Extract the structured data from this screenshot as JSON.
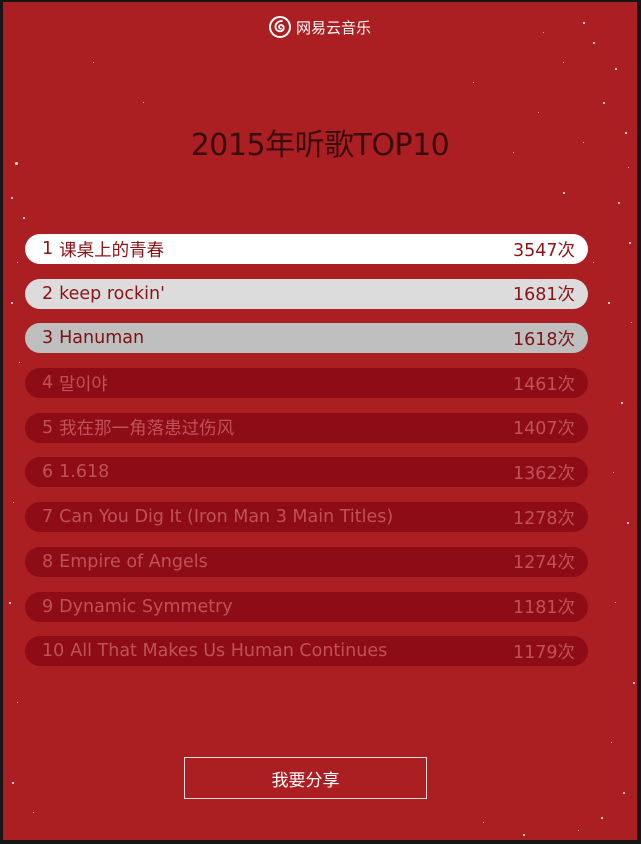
{
  "brand": {
    "name": "网易云音乐",
    "icon": "netease-music-logo-icon"
  },
  "title": "2015年听歌TOP10",
  "colors": {
    "background": "#ab1f23",
    "title": "#3a0b0d",
    "row_dark": "#8d0c16",
    "row_dark_text": "#c0515a"
  },
  "top_songs": [
    {
      "rank": "1",
      "name": "课桌上的青春",
      "count": "3547次"
    },
    {
      "rank": "2",
      "name": "keep rockin'",
      "count": "1681次"
    },
    {
      "rank": "3",
      "name": "Hanuman",
      "count": "1618次"
    },
    {
      "rank": "4",
      "name": "말이야",
      "count": "1461次"
    },
    {
      "rank": "5",
      "name": "我在那一角落患过伤风",
      "count": "1407次"
    },
    {
      "rank": "6",
      "name": "1.618",
      "count": "1362次"
    },
    {
      "rank": "7",
      "name": "Can You Dig It (Iron Man 3 Main Titles)",
      "count": "1278次"
    },
    {
      "rank": "8",
      "name": "Empire of Angels",
      "count": "1274次"
    },
    {
      "rank": "9",
      "name": "Dynamic Symmetry",
      "count": "1181次"
    },
    {
      "rank": "10",
      "name": "All That Makes Us Human Continues",
      "count": "1179次"
    }
  ],
  "share_button": "我要分享"
}
